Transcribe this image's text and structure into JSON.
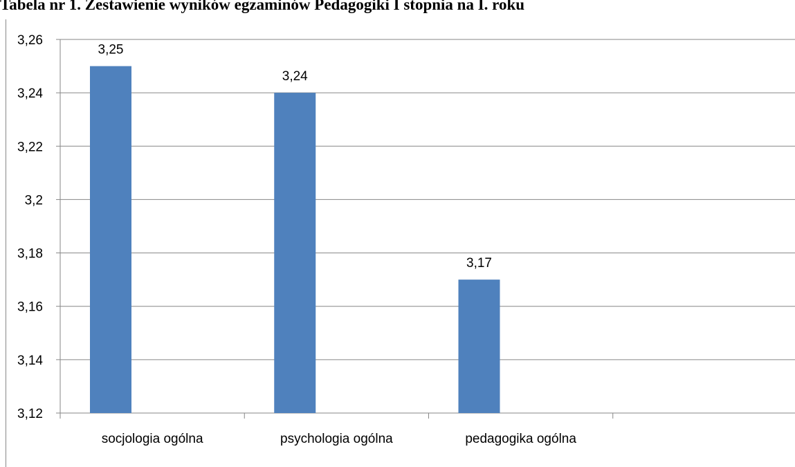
{
  "chart_data": {
    "type": "bar",
    "title": "Tabela nr 1. Zestawienie wyników egzaminów Pedagogiki I stopnia na I. roku",
    "categories": [
      "socjologia ogólna",
      "psychologia ogólna",
      "pedagogika ogólna",
      null
    ],
    "values": [
      3.25,
      3.24,
      3.17,
      null
    ],
    "value_labels": [
      "3,25",
      "3,24",
      "3,17",
      null
    ],
    "color": "#4f81bd",
    "ylim": [
      3.12,
      3.26
    ],
    "yticks": [
      {
        "value": 3.12,
        "label": "3,12"
      },
      {
        "value": 3.14,
        "label": "3,14"
      },
      {
        "value": 3.16,
        "label": "3,16"
      },
      {
        "value": 3.18,
        "label": "3,18"
      },
      {
        "value": 3.2,
        "label": "3,2"
      },
      {
        "value": 3.22,
        "label": "3,22"
      },
      {
        "value": 3.24,
        "label": "3,24"
      },
      {
        "value": 3.26,
        "label": "3,26"
      }
    ],
    "grid": true
  }
}
